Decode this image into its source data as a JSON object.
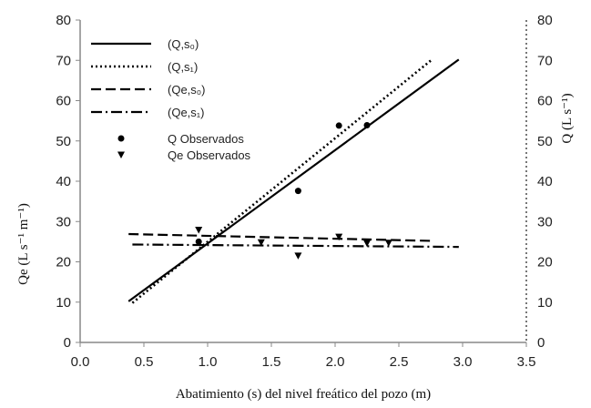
{
  "chart_data": {
    "type": "line",
    "xlabel": "Abatimiento (s) del nivel freático del pozo (m)",
    "ylabel_left": "Qe (L s⁻¹ m⁻¹)",
    "ylabel_right": "Q (L s⁻¹)",
    "xlim": [
      0.0,
      3.5
    ],
    "ylim": [
      0,
      80
    ],
    "x_ticks": [
      "0.0",
      "0.5",
      "1.0",
      "1.5",
      "2.0",
      "2.5",
      "3.0",
      "3.5"
    ],
    "y_ticks": [
      "0",
      "10",
      "20",
      "30",
      "40",
      "50",
      "60",
      "70",
      "80"
    ],
    "grid": false,
    "legend_position": "top-left",
    "series": [
      {
        "name": "(Q,s₀)",
        "style": "solid",
        "x": [
          0.38,
          2.97
        ],
        "y": [
          10.2,
          70.2
        ]
      },
      {
        "name": "(Q,s₁)",
        "style": "dotted",
        "x": [
          0.41,
          2.76
        ],
        "y": [
          9.8,
          70.2
        ]
      },
      {
        "name": "(Qe,s₀)",
        "style": "dashed",
        "x": [
          0.38,
          2.76
        ],
        "y": [
          26.9,
          25.2
        ]
      },
      {
        "name": "(Qe,s₁)",
        "style": "dashdot",
        "x": [
          0.41,
          2.97
        ],
        "y": [
          24.3,
          23.7
        ]
      }
    ],
    "observed": [
      {
        "name": "Q Observados",
        "marker": "circle",
        "x": [
          0.93,
          1.71,
          2.03,
          2.25
        ],
        "y": [
          25.0,
          37.6,
          53.8,
          53.9
        ]
      },
      {
        "name": "Qe Observados",
        "marker": "triangle",
        "x": [
          0.93,
          1.42,
          1.71,
          2.03,
          2.25,
          2.42
        ],
        "y": [
          27.9,
          24.8,
          21.5,
          26.2,
          24.6,
          24.7
        ]
      }
    ]
  }
}
